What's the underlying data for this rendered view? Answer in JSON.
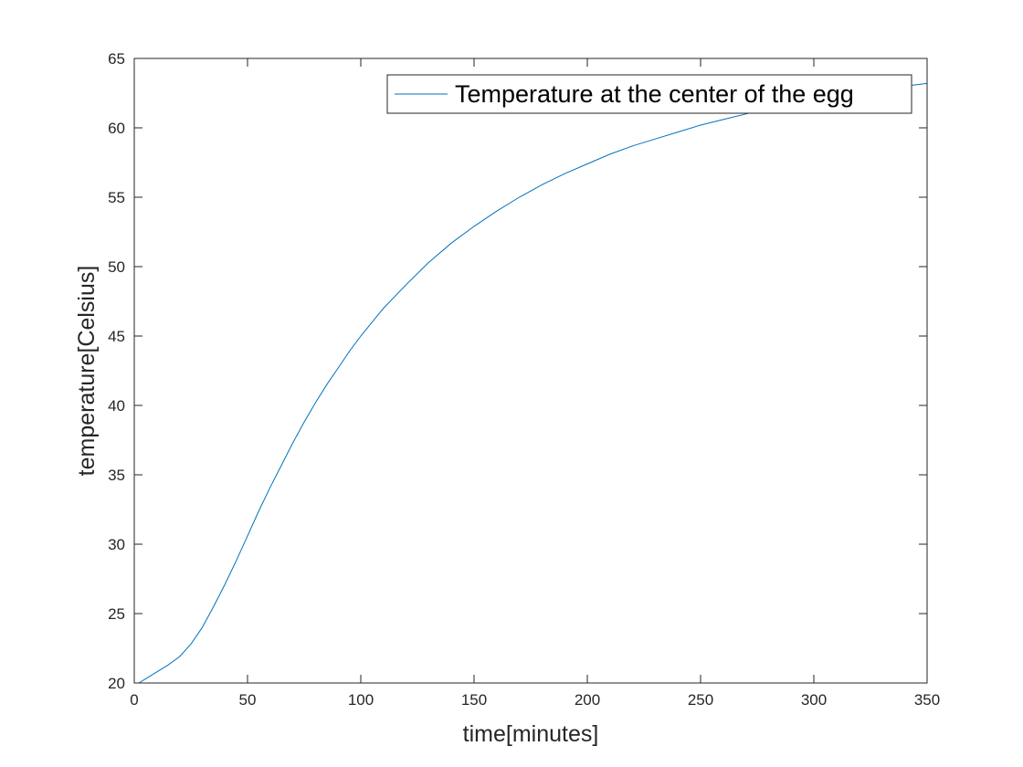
{
  "chart_data": {
    "type": "line",
    "title": "",
    "xlabel": "time[minutes]",
    "ylabel": "temperature[Celsius]",
    "xlim": [
      0,
      350
    ],
    "ylim": [
      20,
      65
    ],
    "xticks": [
      0,
      50,
      100,
      150,
      200,
      250,
      300,
      350
    ],
    "yticks": [
      20,
      25,
      30,
      35,
      40,
      45,
      50,
      55,
      60,
      65
    ],
    "grid": false,
    "legend_position": "top-right",
    "series": [
      {
        "name": "Temperature at the center of the egg",
        "color": "#0072BD",
        "x": [
          0,
          2,
          5,
          10,
          15,
          20,
          25,
          30,
          35,
          40,
          45,
          50,
          55,
          60,
          65,
          70,
          75,
          80,
          85,
          90,
          95,
          100,
          110,
          120,
          130,
          140,
          150,
          160,
          170,
          180,
          190,
          200,
          210,
          220,
          230,
          240,
          250,
          260,
          270,
          280,
          290,
          300,
          310,
          320,
          330,
          340,
          350
        ],
        "y": [
          20.0,
          20.0,
          20.3,
          20.8,
          21.3,
          21.9,
          22.8,
          24.0,
          25.5,
          27.1,
          28.8,
          30.6,
          32.4,
          34.1,
          35.7,
          37.3,
          38.8,
          40.2,
          41.5,
          42.7,
          43.9,
          45.0,
          47.0,
          48.7,
          50.3,
          51.7,
          52.9,
          54.0,
          55.0,
          55.9,
          56.7,
          57.4,
          58.1,
          58.7,
          59.2,
          59.7,
          60.2,
          60.6,
          61.0,
          61.4,
          61.7,
          62.0,
          62.3,
          62.6,
          62.8,
          63.0,
          63.2
        ]
      }
    ]
  }
}
